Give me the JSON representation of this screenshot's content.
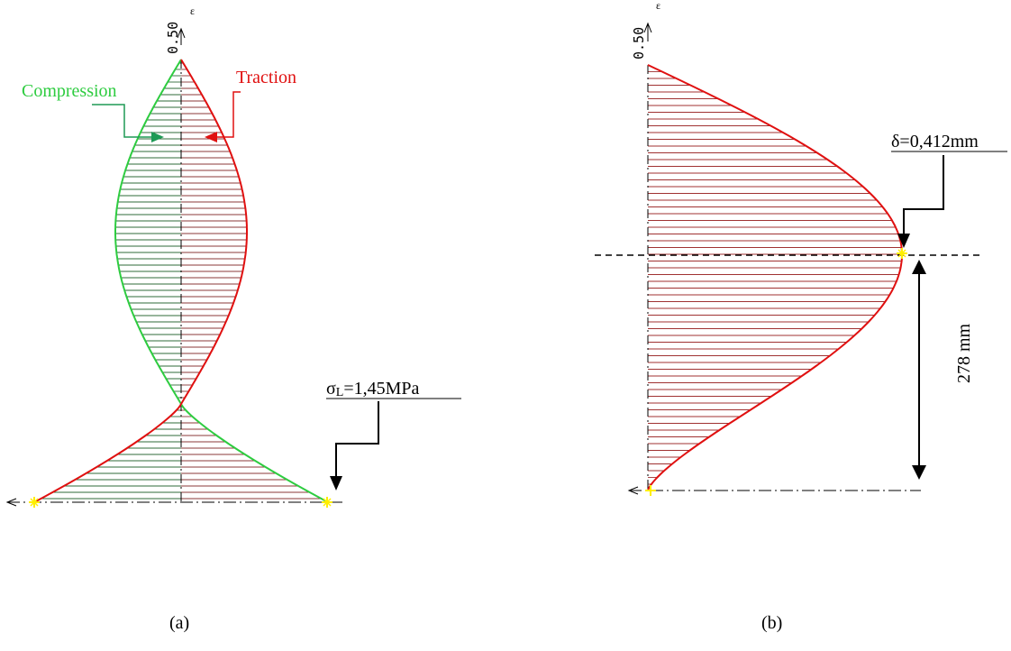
{
  "colors": {
    "compression": "#2ecc40",
    "traction": "#e01010",
    "hatch_compression": "#2f6b3a",
    "hatch_traction": "#8b3a3a",
    "hatch_b": "#a03232",
    "marker": "#ffee00",
    "ink": "#000000",
    "arrow_compression": "#1e9a55",
    "arrow_traction": "#e01010"
  },
  "panel_a": {
    "axis_value": "0.50",
    "axis_symbol": "ε",
    "compression_label": "Compression",
    "traction_label": "Traction",
    "stress_label_symbol": "σ",
    "stress_label_sub": "L",
    "stress_label_value": "=1,45MPa",
    "caption": "(a)"
  },
  "panel_b": {
    "axis_value": "0.50",
    "axis_symbol": "ε",
    "deflection_label": "δ=0,412mm",
    "dimension_label": "278 mm",
    "caption": "(b)"
  }
}
